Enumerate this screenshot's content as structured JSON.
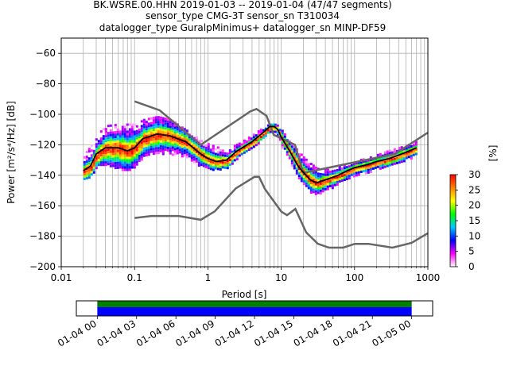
{
  "figure": {
    "title_lines": [
      "BK.WSRE.00.HHN   2019-01-03 -- 2019-01-04  (47/47 segments)",
      "sensor_type CMG-3T sensor_sn T310034",
      "datalogger_type GuralpMinimus+ datalogger_sn MINP-DF59"
    ]
  },
  "chart_data": [
    {
      "type": "heatmap",
      "xlabel": "Period [s]",
      "ylabel": "Power [m²/s⁴/Hz] [dB]",
      "xscale": "log",
      "xlim": [
        0.01,
        1000
      ],
      "ylim": [
        -200,
        -50
      ],
      "x_ticks": [
        {
          "value": 0.01,
          "label": "0.01"
        },
        {
          "value": 0.1,
          "label": "0.1"
        },
        {
          "value": 1,
          "label": "1"
        },
        {
          "value": 10,
          "label": "10"
        },
        {
          "value": 100,
          "label": "100"
        },
        {
          "value": 1000,
          "label": "1000"
        }
      ],
      "y_ticks": [
        {
          "value": -60,
          "label": "−60"
        },
        {
          "value": -80,
          "label": "−80"
        },
        {
          "value": -100,
          "label": "−100"
        },
        {
          "value": -120,
          "label": "−120"
        },
        {
          "value": -140,
          "label": "−140"
        },
        {
          "value": -160,
          "label": "−160"
        },
        {
          "value": -180,
          "label": "−180"
        },
        {
          "value": -200,
          "label": "−200"
        }
      ],
      "grid": true,
      "colorbar": {
        "label": "[%]",
        "range": [
          0,
          30
        ],
        "ticks": [
          {
            "value": 0,
            "label": "0"
          },
          {
            "value": 5,
            "label": "5"
          },
          {
            "value": 10,
            "label": "10"
          },
          {
            "value": 15,
            "label": "15"
          },
          {
            "value": 20,
            "label": "20"
          },
          {
            "value": 25,
            "label": "25"
          },
          {
            "value": 30,
            "label": "30"
          }
        ],
        "colors": [
          "#ffffff",
          "#ff00ff",
          "#0000ff",
          "#00c8ff",
          "#00ff00",
          "#ffff00",
          "#ff8000",
          "#ff0000"
        ]
      },
      "mean_curve": {
        "color": "#000000",
        "x": [
          0.02,
          0.025,
          0.03,
          0.04,
          0.06,
          0.08,
          0.1,
          0.13,
          0.2,
          0.3,
          0.5,
          0.8,
          1.0,
          1.3,
          1.8,
          2.5,
          4,
          6,
          7,
          8,
          9,
          10,
          13,
          17,
          20,
          25,
          30,
          40,
          60,
          80,
          100,
          150,
          200,
          300,
          500,
          700
        ],
        "y": [
          -137,
          -134,
          -126,
          -122,
          -122,
          -124,
          -122,
          -116,
          -113,
          -114,
          -118,
          -126,
          -129,
          -131,
          -130,
          -124,
          -118,
          -111,
          -108,
          -108,
          -110,
          -115,
          -124,
          -134,
          -138,
          -143,
          -145,
          -143,
          -140,
          -137,
          -135,
          -133,
          -131,
          -129,
          -125,
          -122
        ]
      },
      "psd_density": [
        {
          "x": [
            0.02,
            0.025,
            0.03,
            0.04,
            0.06,
            0.08,
            0.1,
            0.13,
            0.2,
            0.3,
            0.5,
            0.8,
            1.0,
            1.3,
            1.8,
            2.5,
            4,
            6,
            7,
            8,
            9,
            10,
            13,
            17,
            20,
            25,
            30,
            40,
            60,
            80,
            100,
            150,
            200,
            300,
            500,
            700
          ],
          "upper": [
            -126,
            -120,
            -113,
            -107,
            -106,
            -106,
            -106,
            -103,
            -101,
            -103,
            -110,
            -117,
            -119,
            -121,
            -122,
            -119,
            -113,
            -107,
            -106,
            -106,
            -107,
            -110,
            -118,
            -124,
            -128,
            -132,
            -135,
            -136,
            -134,
            -132,
            -130,
            -128,
            -126,
            -123,
            -120,
            -117
          ],
          "lower": [
            -143,
            -140,
            -134,
            -133,
            -136,
            -137,
            -134,
            -128,
            -126,
            -126,
            -128,
            -134,
            -136,
            -136,
            -135,
            -128,
            -122,
            -114,
            -111,
            -111,
            -114,
            -121,
            -132,
            -142,
            -146,
            -151,
            -152,
            -150,
            -145,
            -142,
            -140,
            -138,
            -136,
            -134,
            -130,
            -126
          ]
        }
      ],
      "noise_models": [
        {
          "name": "NHNM",
          "color": "#666666",
          "x": [
            0.1,
            0.22,
            0.8,
            3.8,
            4.6,
            6.3,
            7.9,
            15.4,
            20,
            354.8,
            1000
          ],
          "y": [
            -91.5,
            -97.4,
            -120,
            -98,
            -96.5,
            -101,
            -113.5,
            -120,
            -138.5,
            -126,
            -112
          ]
        },
        {
          "name": "NLNM",
          "color": "#666666",
          "x": [
            0.1,
            0.17,
            0.4,
            0.8,
            1.24,
            2.4,
            4.3,
            5.0,
            6.0,
            10,
            12,
            15.6,
            21.9,
            31.6,
            45,
            70,
            101,
            154,
            328,
            600,
            1000
          ],
          "y": [
            -168,
            -166.7,
            -166.7,
            -169.2,
            -163.7,
            -148.6,
            -141.1,
            -141.1,
            -149,
            -163.8,
            -166.2,
            -162.1,
            -177.5,
            -185,
            -187.5,
            -187.5,
            -185,
            -185,
            -187.5,
            -184.4,
            -178
          ]
        }
      ]
    },
    {
      "type": "bar",
      "title": "",
      "xlabel": "",
      "ylabel": "",
      "xlim": [
        "2019-01-03 22:24",
        "2019-01-05 01:36"
      ],
      "x_ticks": [
        {
          "value": "2019-01-04 00:00",
          "label": "01-04 00"
        },
        {
          "value": "2019-01-04 03:00",
          "label": "01-04 03"
        },
        {
          "value": "2019-01-04 06:00",
          "label": "01-04 06"
        },
        {
          "value": "2019-01-04 09:00",
          "label": "01-04 09"
        },
        {
          "value": "2019-01-04 12:00",
          "label": "01-04 12"
        },
        {
          "value": "2019-01-04 15:00",
          "label": "01-04 15"
        },
        {
          "value": "2019-01-04 18:00",
          "label": "01-04 18"
        },
        {
          "value": "2019-01-04 21:00",
          "label": "01-04 21"
        },
        {
          "value": "2019-01-05 00:00",
          "label": "01-05 00"
        }
      ],
      "coverage": [
        {
          "label": "",
          "start": "2019-01-04 00:00",
          "end": "2019-01-05 00:00",
          "color": "#008000"
        },
        {
          "label": "",
          "start": "2019-01-04 00:00",
          "end": "2019-01-05 00:00",
          "color": "#0000ff"
        }
      ]
    }
  ]
}
